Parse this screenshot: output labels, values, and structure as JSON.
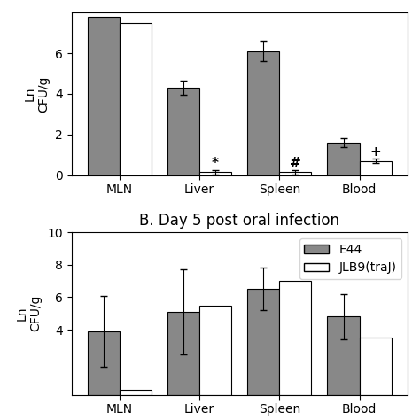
{
  "chart_data": [
    {
      "type": "bar",
      "categories": [
        "MLN",
        "Liver",
        "Spleen",
        "Blood"
      ],
      "series": [
        {
          "color": "#888888",
          "values": [
            7.8,
            4.3,
            6.1,
            1.6
          ],
          "errors": [
            0.0,
            0.35,
            0.5,
            0.2
          ]
        },
        {
          "color": "#ffffff",
          "values": [
            7.5,
            0.15,
            0.15,
            0.7
          ],
          "errors": [
            0.0,
            0.12,
            0.12,
            0.12
          ],
          "annotations": [
            null,
            "*",
            "#",
            "+"
          ]
        }
      ],
      "ylim": [
        0,
        8
      ],
      "yticks": [
        0,
        2,
        4,
        6
      ],
      "ylabel": "Ln\nCFU/g"
    },
    {
      "type": "bar",
      "title": "B. Day 5 post oral infection",
      "categories": [
        "MLN",
        "Liver",
        "Spleen",
        "Blood"
      ],
      "series": [
        {
          "name": "E44",
          "color": "#888888",
          "values": [
            3.9,
            5.1,
            6.5,
            4.8
          ],
          "errors": [
            2.2,
            2.6,
            1.3,
            1.4
          ]
        },
        {
          "name": "JLB9(traJ)",
          "color": "#ffffff",
          "values": [
            0.3,
            5.5,
            7.0,
            3.5
          ]
        }
      ],
      "ylim": [
        0,
        10
      ],
      "yticks": [
        4,
        6,
        8,
        10
      ],
      "ylabel": "Ln\nCFU/g",
      "legend": "upper right"
    }
  ]
}
